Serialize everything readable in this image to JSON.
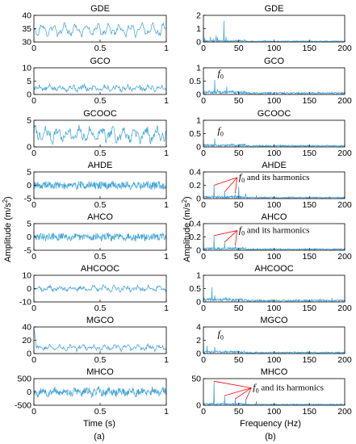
{
  "figure": {
    "left_panel_label": "(a)",
    "right_panel_label": "(b)",
    "left_xlabel": "Time (s)",
    "right_xlabel": "Frequency (Hz)",
    "left_ylabel": "Amplitude (m/s",
    "right_ylabel": "Amplitude (m/s",
    "ylabel_sup": "2",
    "ylabel_close": ")",
    "annotation_text": "and its harmonics",
    "fo_symbol": "f",
    "fo_subscript": "0",
    "line_color": "#3aa0d8",
    "annotation_color": "#ff0000"
  },
  "chart_data": [
    {
      "type": "line",
      "title": "GDE",
      "column": "time",
      "row": 0,
      "xlim": [
        0,
        1
      ],
      "ylim": [
        30,
        40
      ],
      "xticks": [
        "0",
        "0.5",
        "1"
      ],
      "yticks": [
        "40",
        "35",
        "30"
      ],
      "yticks_val": [
        40,
        35,
        30
      ],
      "signal": {
        "mean": 34.5,
        "amp": 1.6,
        "noise": 0.8,
        "seed": 3
      }
    },
    {
      "type": "line",
      "title": "GDE",
      "column": "freq",
      "row": 0,
      "xlim": [
        0,
        200
      ],
      "ylim": [
        0,
        2
      ],
      "xticks": [
        "0",
        "50",
        "100",
        "150",
        "200"
      ],
      "yticks": [
        "2",
        "1",
        "0"
      ],
      "yticks_val": [
        2,
        1,
        0
      ],
      "peaks": [
        [
          0,
          1.3
        ],
        [
          2,
          0.3
        ],
        [
          10,
          0.4
        ],
        [
          14,
          0.25
        ],
        [
          18,
          0.5
        ],
        [
          20,
          0.35
        ],
        [
          29,
          1.6
        ],
        [
          32,
          0.4
        ],
        [
          58,
          0.2
        ],
        [
          87,
          0.12
        ]
      ],
      "floor": 0.05,
      "seed": 11
    },
    {
      "type": "line",
      "title": "GCO",
      "column": "time",
      "row": 1,
      "xlim": [
        0,
        1
      ],
      "ylim": [
        0,
        10
      ],
      "xticks": [
        "0",
        "0.5",
        "1"
      ],
      "yticks": [
        "10",
        "5",
        "0"
      ],
      "yticks_val": [
        10,
        5,
        0
      ],
      "signal": {
        "mean": 2.4,
        "amp": 0.6,
        "noise": 0.8,
        "seed": 5
      }
    },
    {
      "type": "line",
      "title": "GCO",
      "column": "freq",
      "row": 1,
      "xlim": [
        0,
        200
      ],
      "ylim": [
        0,
        1
      ],
      "xticks": [
        "0",
        "50",
        "100",
        "150",
        "200"
      ],
      "yticks": [
        "1",
        "0.5",
        "0"
      ],
      "yticks_val": [
        1,
        0.5,
        0
      ],
      "peaks": [
        [
          0,
          0.65
        ],
        [
          8,
          0.15
        ],
        [
          16,
          0.55
        ],
        [
          20,
          0.2
        ],
        [
          33,
          0.3
        ],
        [
          48,
          0.12
        ]
      ],
      "floor": 0.05,
      "seed": 13,
      "fo": {
        "x": 20,
        "y": 0.68
      }
    },
    {
      "type": "line",
      "title": "GCOOC",
      "column": "time",
      "row": 2,
      "xlim": [
        0,
        1
      ],
      "ylim": [
        0,
        5
      ],
      "xticks": [
        "0",
        "0.5",
        "1"
      ],
      "yticks": [
        "5",
        "0"
      ],
      "yticks_val": [
        5,
        0
      ],
      "signal": {
        "mean": 2.3,
        "amp": 0.9,
        "noise": 0.7,
        "seed": 7
      }
    },
    {
      "type": "line",
      "title": "GCOOC",
      "column": "freq",
      "row": 2,
      "xlim": [
        0,
        200
      ],
      "ylim": [
        0,
        1
      ],
      "xticks": [
        "0",
        "50",
        "100",
        "150",
        "200"
      ],
      "yticks": [
        "1",
        "0.5",
        "0"
      ],
      "yticks_val": [
        1,
        0.5,
        0
      ],
      "peaks": [
        [
          0,
          0.3
        ],
        [
          6,
          0.12
        ],
        [
          16,
          0.32
        ],
        [
          32,
          0.1
        ],
        [
          48,
          0.08
        ]
      ],
      "floor": 0.04,
      "seed": 17,
      "fo": {
        "x": 20,
        "y": 0.5
      }
    },
    {
      "type": "line",
      "title": "AHDE",
      "column": "time",
      "row": 3,
      "xlim": [
        0,
        1
      ],
      "ylim": [
        -5,
        5
      ],
      "xticks": [
        "0",
        "0.5",
        "1"
      ],
      "yticks": [
        "5",
        "0",
        "-5"
      ],
      "yticks_val": [
        5,
        0,
        -5
      ],
      "signal": {
        "mean": 0,
        "amp": 0.3,
        "noise": 1.4,
        "dense": true,
        "seed": 19
      }
    },
    {
      "type": "line",
      "title": "AHDE",
      "column": "freq",
      "row": 3,
      "xlim": [
        0,
        200
      ],
      "ylim": [
        0,
        0.4
      ],
      "xticks": [
        "0",
        "50",
        "100",
        "150",
        "200"
      ],
      "yticks": [
        "0.4",
        "0.2",
        "0"
      ],
      "yticks_val": [
        0.4,
        0.2,
        0
      ],
      "peaks": [
        [
          0,
          0.25
        ],
        [
          15,
          0.2
        ],
        [
          30,
          0.1
        ],
        [
          45,
          0.06
        ],
        [
          50,
          0.18
        ],
        [
          60,
          0.08
        ],
        [
          75,
          0.05
        ]
      ],
      "floor": 0.015,
      "seed": 23,
      "harmonics": {
        "label_x": 50,
        "label_y": 0.28,
        "targets": [
          [
            15,
            0.2
          ],
          [
            30,
            0.1
          ],
          [
            45,
            0.08
          ]
        ]
      }
    },
    {
      "type": "line",
      "title": "AHCO",
      "column": "time",
      "row": 4,
      "xlim": [
        0,
        1
      ],
      "ylim": [
        -5,
        5
      ],
      "xticks": [
        "0",
        "0.5",
        "1"
      ],
      "yticks": [
        "5",
        "0",
        "-5"
      ],
      "yticks_val": [
        5,
        0,
        -5
      ],
      "signal": {
        "mean": 0,
        "amp": 0.3,
        "noise": 1.3,
        "dense": true,
        "seed": 29
      }
    },
    {
      "type": "line",
      "title": "AHCO",
      "column": "freq",
      "row": 4,
      "xlim": [
        0,
        200
      ],
      "ylim": [
        0,
        0.4
      ],
      "xticks": [
        "0",
        "50",
        "100",
        "150",
        "200"
      ],
      "yticks": [
        "0.4",
        "0.2",
        "0"
      ],
      "yticks_val": [
        0.4,
        0.2,
        0
      ],
      "peaks": [
        [
          0,
          0.2
        ],
        [
          15,
          0.22
        ],
        [
          30,
          0.12
        ],
        [
          45,
          0.06
        ],
        [
          60,
          0.04
        ]
      ],
      "floor": 0.015,
      "seed": 31,
      "harmonics": {
        "label_x": 50,
        "label_y": 0.26,
        "targets": [
          [
            15,
            0.22
          ],
          [
            30,
            0.12
          ],
          [
            45,
            0.07
          ]
        ]
      }
    },
    {
      "type": "line",
      "title": "AHCOOC",
      "column": "time",
      "row": 5,
      "xlim": [
        0,
        1
      ],
      "ylim": [
        -10,
        10
      ],
      "xticks": [
        "0",
        "0.5",
        "1"
      ],
      "yticks": [
        "10",
        "0",
        "-10"
      ],
      "yticks_val": [
        10,
        0,
        -10
      ],
      "signal": {
        "mean": 0,
        "amp": 1.2,
        "noise": 1.4,
        "seed": 37
      }
    },
    {
      "type": "line",
      "title": "AHCOOC",
      "column": "freq",
      "row": 5,
      "xlim": [
        0,
        200
      ],
      "ylim": [
        0,
        1
      ],
      "xticks": [
        "0",
        "50",
        "100",
        "150",
        "200"
      ],
      "yticks": [
        "1",
        "0.5",
        "0"
      ],
      "yticks_val": [
        1,
        0.5,
        0
      ],
      "peaks": [
        [
          0,
          0.2
        ],
        [
          12,
          0.55
        ],
        [
          16,
          0.25
        ],
        [
          32,
          0.18
        ],
        [
          48,
          0.1
        ],
        [
          165,
          0.12
        ],
        [
          182,
          0.15
        ]
      ],
      "floor": 0.05,
      "seed": 41
    },
    {
      "type": "line",
      "title": "MGCO",
      "column": "time",
      "row": 6,
      "xlim": [
        0,
        1
      ],
      "ylim": [
        0,
        40
      ],
      "xticks": [
        "0",
        "0.5",
        "1"
      ],
      "yticks": [
        "40",
        "20",
        "0"
      ],
      "yticks_val": [
        40,
        20,
        0
      ],
      "signal": {
        "mean": 9,
        "amp": 2.5,
        "noise": 2.5,
        "start_spike": 38,
        "seed": 43
      }
    },
    {
      "type": "line",
      "title": "MGCO",
      "column": "freq",
      "row": 6,
      "xlim": [
        0,
        200
      ],
      "ylim": [
        0,
        4
      ],
      "xticks": [
        "0",
        "50",
        "100",
        "150",
        "200"
      ],
      "yticks": [
        "4",
        "2",
        "0"
      ],
      "yticks_val": [
        4,
        2,
        0
      ],
      "peaks": [
        [
          0,
          2.4
        ],
        [
          5,
          1.2
        ],
        [
          16,
          1.0
        ],
        [
          32,
          0.5
        ],
        [
          48,
          0.3
        ]
      ],
      "floor": 0.15,
      "seed": 47,
      "fo": {
        "x": 20,
        "y": 2.5
      }
    },
    {
      "type": "line",
      "title": "MHCO",
      "column": "time",
      "row": 7,
      "xlim": [
        0,
        1
      ],
      "ylim": [
        -500,
        500
      ],
      "xticks": [
        "0",
        "0.5",
        "1"
      ],
      "yticks": [
        "500",
        "0",
        "-500"
      ],
      "yticks_val": [
        500,
        0,
        -500
      ],
      "signal": {
        "mean": 0,
        "amp": 60,
        "noise": 130,
        "dense": true,
        "seed": 53
      }
    },
    {
      "type": "line",
      "title": "MHCO",
      "column": "freq",
      "row": 7,
      "xlim": [
        0,
        200
      ],
      "ylim": [
        0,
        50
      ],
      "xticks": [
        "0",
        "50",
        "100",
        "150",
        "200"
      ],
      "yticks": [
        "50",
        "0"
      ],
      "yticks_val": [
        50,
        0
      ],
      "peaks": [
        [
          0,
          10
        ],
        [
          15,
          45
        ],
        [
          30,
          18
        ],
        [
          45,
          12
        ],
        [
          60,
          10
        ],
        [
          75,
          8
        ]
      ],
      "floor": 1.5,
      "seed": 59,
      "harmonics": {
        "label_x": 70,
        "label_y": 28,
        "targets": [
          [
            15,
            45
          ],
          [
            30,
            18
          ],
          [
            45,
            12
          ],
          [
            60,
            10
          ]
        ]
      }
    }
  ]
}
